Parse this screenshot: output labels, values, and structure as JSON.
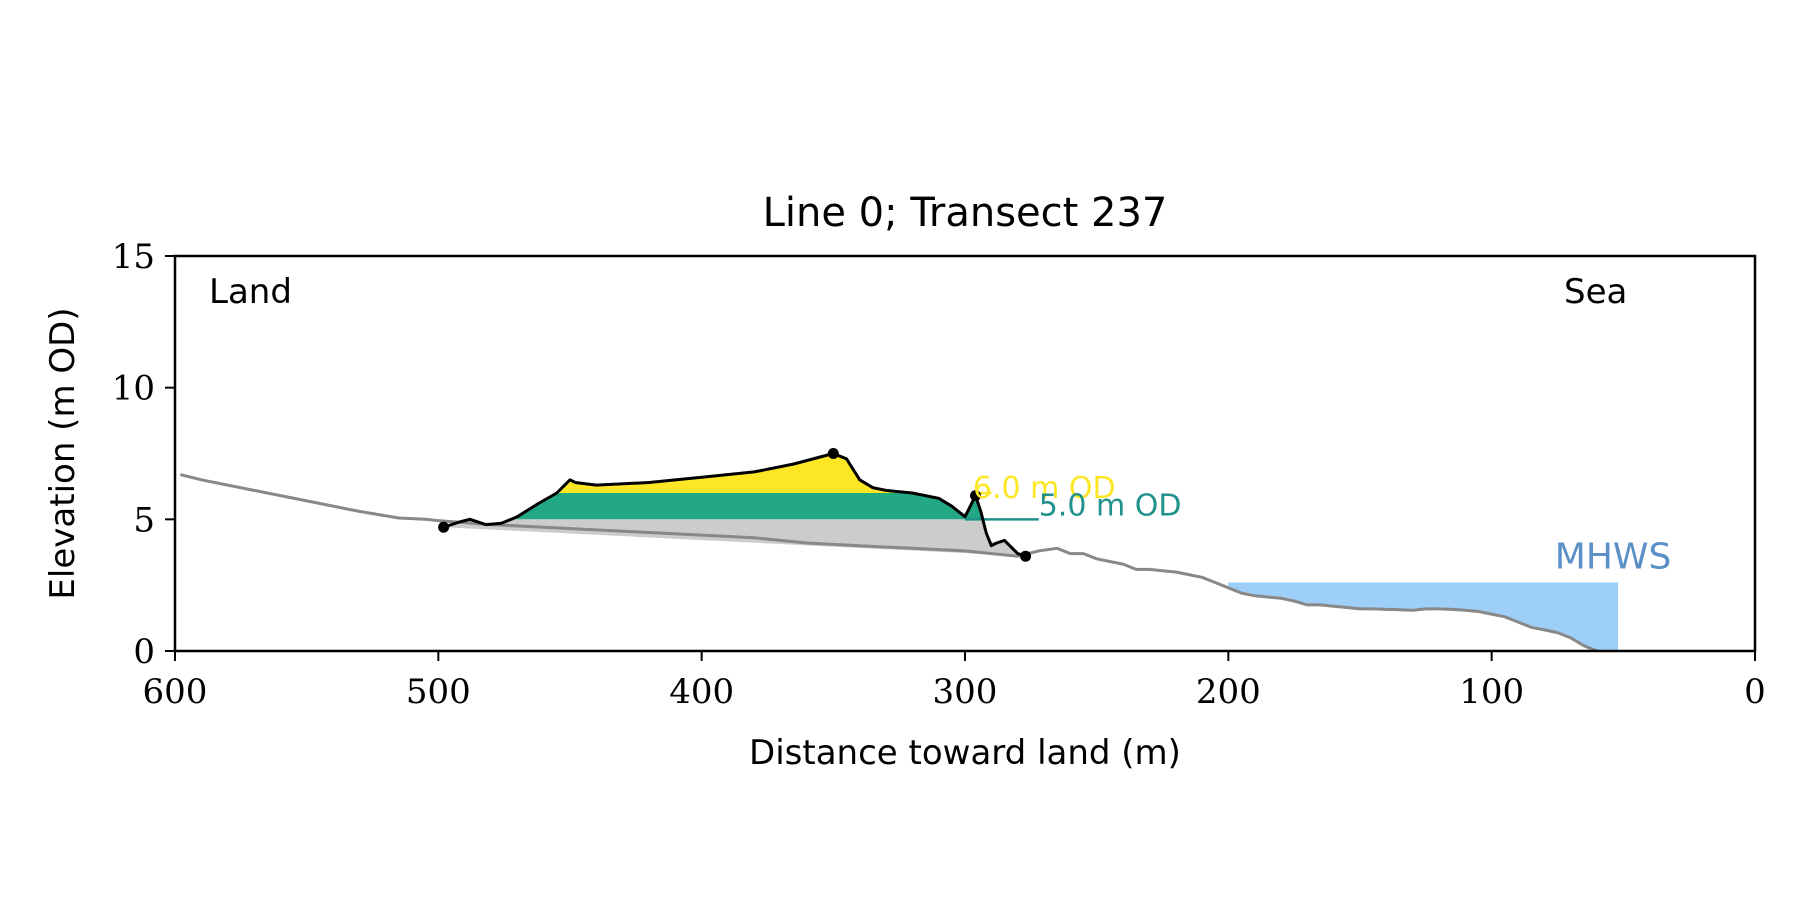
{
  "chart_data": {
    "type": "area",
    "title": "Line 0; Transect 237",
    "xlabel": "Distance toward land (m)",
    "ylabel": "Elevation (m OD)",
    "xlim": [
      600,
      0
    ],
    "ylim": [
      0,
      15
    ],
    "x_ticks": [
      "600",
      "500",
      "400",
      "300",
      "200",
      "100",
      "0"
    ],
    "y_ticks": [
      "0",
      "5",
      "10",
      "15"
    ],
    "x_tick_values": [
      600,
      500,
      400,
      300,
      200,
      100,
      0
    ],
    "y_tick_values": [
      0,
      5,
      10,
      15
    ],
    "grid": false,
    "land_label": "Land",
    "sea_label": "Sea",
    "colors": {
      "ground_profile": "#888888",
      "dune_profile": "#000000",
      "base_fill": "#cccccc",
      "level_5_fill": "#22a884",
      "level_6_fill": "#fde725",
      "mhws_fill": "#9ecff8",
      "mhws_label": "#5a8fc8",
      "level_5_label": "#21918c",
      "level_6_label": "#fde725"
    },
    "profile_ground": {
      "x": [
        598,
        590,
        570,
        550,
        530,
        515,
        505,
        500,
        480,
        460,
        440,
        420,
        400,
        380,
        360,
        340,
        320,
        300,
        290,
        280,
        272,
        265,
        260,
        255,
        250,
        245,
        240,
        235,
        230,
        225,
        220,
        215,
        210,
        205,
        200,
        195,
        190,
        185,
        180,
        175,
        170,
        165,
        160,
        155,
        150,
        145,
        140,
        135,
        130,
        125,
        120,
        115,
        110,
        105,
        100,
        95,
        90,
        85,
        80,
        75,
        70,
        65,
        60
      ],
      "y": [
        6.7,
        6.5,
        6.1,
        5.7,
        5.3,
        5.05,
        5.0,
        4.95,
        4.8,
        4.7,
        4.6,
        4.5,
        4.4,
        4.3,
        4.1,
        4.0,
        3.9,
        3.8,
        3.7,
        3.6,
        3.8,
        3.9,
        3.7,
        3.7,
        3.5,
        3.4,
        3.3,
        3.1,
        3.1,
        3.05,
        3.0,
        2.9,
        2.8,
        2.6,
        2.4,
        2.2,
        2.1,
        2.05,
        2.0,
        1.9,
        1.75,
        1.75,
        1.7,
        1.65,
        1.6,
        1.6,
        1.58,
        1.57,
        1.55,
        1.6,
        1.6,
        1.58,
        1.55,
        1.5,
        1.4,
        1.3,
        1.1,
        0.9,
        0.8,
        0.7,
        0.5,
        0.2,
        0.0
      ]
    },
    "profile_dune": {
      "x": [
        498,
        492,
        488,
        482,
        476,
        470,
        462,
        455,
        450,
        448,
        440,
        420,
        400,
        380,
        365,
        350,
        345,
        340,
        335,
        330,
        320,
        310,
        305,
        300,
        298,
        296,
        294,
        292,
        290,
        288,
        285,
        282,
        280,
        277
      ],
      "y": [
        4.7,
        4.9,
        5.0,
        4.8,
        4.85,
        5.1,
        5.6,
        6.0,
        6.5,
        6.4,
        6.3,
        6.4,
        6.6,
        6.8,
        7.1,
        7.5,
        7.3,
        6.5,
        6.2,
        6.1,
        6.0,
        5.8,
        5.5,
        5.1,
        5.5,
        5.9,
        5.3,
        4.5,
        4.0,
        4.1,
        4.2,
        3.9,
        3.7,
        3.6
      ]
    },
    "key_points": {
      "x": [
        498,
        350,
        296,
        277
      ],
      "y": [
        4.7,
        7.5,
        5.9,
        3.6
      ]
    },
    "levels": [
      {
        "label": "6.0 m OD",
        "value": 6.0
      },
      {
        "label": "5.0 m OD",
        "value": 5.0
      }
    ],
    "mhws": {
      "label": "MHWS",
      "value": 2.6,
      "x_range": [
        200,
        52
      ]
    }
  }
}
